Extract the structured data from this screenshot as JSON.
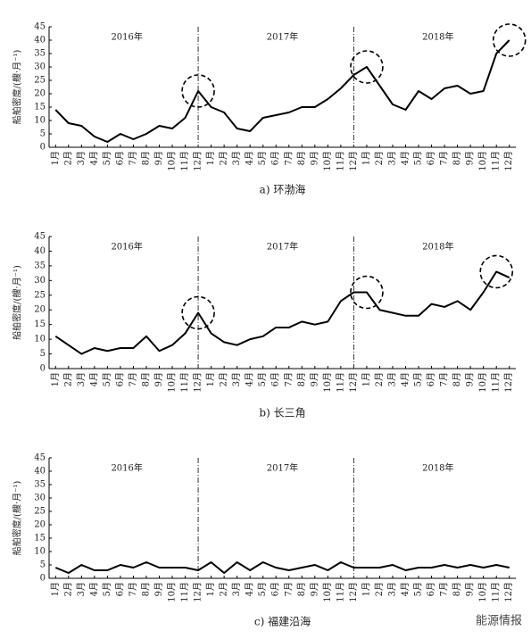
{
  "chart_data": [
    {
      "type": "line",
      "caption": "a) 环渤海",
      "y_label": "船舶密度/(艘·月⁻¹)",
      "categories": [
        "1月",
        "2月",
        "3月",
        "4月",
        "5月",
        "6月",
        "7月",
        "8月",
        "9月",
        "10月",
        "11月",
        "12月",
        "1月",
        "2月",
        "3月",
        "4月",
        "5月",
        "6月",
        "7月",
        "8月",
        "9月",
        "10月",
        "11月",
        "12月",
        "1月",
        "2月",
        "3月",
        "4月",
        "5月",
        "6月",
        "7月",
        "8月",
        "9月",
        "10月",
        "11月",
        "12月"
      ],
      "values": [
        14,
        9,
        8,
        4,
        2,
        5,
        3,
        5,
        8,
        7,
        11,
        21,
        15,
        13,
        7,
        6,
        11,
        12,
        13,
        15,
        15,
        18,
        22,
        27,
        30,
        23,
        16,
        14,
        21,
        18,
        22,
        23,
        20,
        21,
        35,
        40
      ],
      "color": "#000000",
      "ylim": [
        0,
        45
      ],
      "yticks": [
        0,
        5,
        10,
        15,
        20,
        25,
        30,
        35,
        40,
        45
      ],
      "annotations": [
        "2016年",
        "2017年",
        "2018年"
      ]
    },
    {
      "type": "line",
      "caption": "b) 长三角",
      "y_label": "船舶密度/(艘·月⁻¹)",
      "categories": [
        "1月",
        "2月",
        "3月",
        "4月",
        "5月",
        "6月",
        "7月",
        "8月",
        "9月",
        "10月",
        "11月",
        "12月",
        "1月",
        "2月",
        "3月",
        "4月",
        "5月",
        "6月",
        "7月",
        "8月",
        "9月",
        "10月",
        "11月",
        "12月",
        "1月",
        "2月",
        "3月",
        "4月",
        "5月",
        "6月",
        "7月",
        "8月",
        "9月",
        "10月",
        "11月",
        "12月"
      ],
      "values": [
        11,
        8,
        5,
        7,
        6,
        7,
        7,
        11,
        6,
        8,
        12,
        19,
        12,
        9,
        8,
        10,
        11,
        14,
        14,
        16,
        15,
        16,
        23,
        26,
        26,
        20,
        19,
        18,
        18,
        22,
        21,
        23,
        20,
        26,
        33,
        31
      ],
      "color": "#000000",
      "ylim": [
        0,
        45
      ],
      "yticks": [
        0,
        5,
        10,
        15,
        20,
        25,
        30,
        35,
        40,
        45
      ],
      "annotations": [
        "2016年",
        "2017年",
        "2018年"
      ]
    },
    {
      "type": "line",
      "caption": "c) 福建沿海",
      "y_label": "船舶密度/(艘·月⁻¹)",
      "categories": [
        "1月",
        "2月",
        "3月",
        "4月",
        "5月",
        "6月",
        "7月",
        "8月",
        "9月",
        "10月",
        "11月",
        "12月",
        "1月",
        "2月",
        "3月",
        "4月",
        "5月",
        "6月",
        "7月",
        "8月",
        "9月",
        "10月",
        "11月",
        "12月",
        "1月",
        "2月",
        "3月",
        "4月",
        "5月",
        "6月",
        "7月",
        "8月",
        "9月",
        "10月",
        "11月",
        "12月"
      ],
      "values": [
        4,
        2,
        5,
        3,
        3,
        5,
        4,
        6,
        4,
        4,
        4,
        3,
        6,
        2,
        6,
        3,
        6,
        4,
        3,
        4,
        5,
        3,
        6,
        4,
        4,
        4,
        5,
        3,
        4,
        4,
        5,
        4,
        5,
        4,
        5,
        4
      ],
      "color": "#000000",
      "ylim": [
        0,
        45
      ],
      "yticks": [
        0,
        5,
        10,
        15,
        20,
        25,
        30,
        35,
        40,
        45
      ],
      "annotations": [
        "2016年",
        "2017年",
        "2018年"
      ]
    }
  ],
  "watermark": "能源情报"
}
